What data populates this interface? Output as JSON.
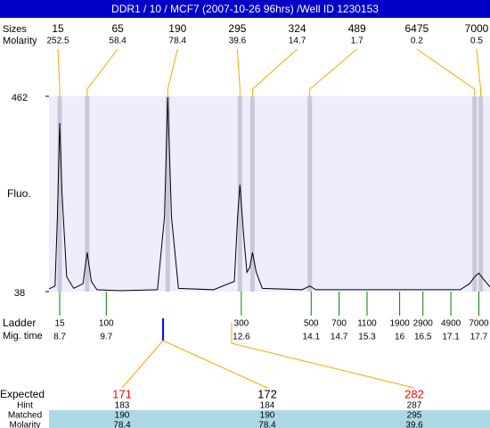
{
  "chart_data": {
    "type": "line",
    "title": "DDR1 / 10 / MCF7 (2007-10-26 96hrs) /Well ID 1230153",
    "ylabel": "Fluo.",
    "ylim": [
      38,
      462
    ],
    "yticks": [
      38,
      462
    ],
    "xlim": [
      8.47,
      17.94
    ],
    "trace": {
      "color": "#000000",
      "x": [
        8.47,
        8.6,
        8.65,
        8.7,
        8.75,
        8.85,
        9.0,
        9.2,
        9.29,
        9.38,
        9.5,
        10.0,
        10.8,
        10.95,
        11.02,
        11.1,
        11.25,
        12.0,
        12.45,
        12.52,
        12.57,
        12.65,
        12.72,
        12.78,
        12.84,
        12.92,
        13.05,
        13.9,
        14.07,
        14.2,
        17.3,
        17.5,
        17.61,
        17.7,
        17.8,
        17.94
      ],
      "values": [
        44,
        50,
        200,
        404,
        250,
        70,
        45,
        55,
        123,
        60,
        42,
        40,
        42,
        200,
        460,
        200,
        45,
        42,
        60,
        200,
        270,
        160,
        80,
        90,
        123,
        80,
        45,
        42,
        50,
        42,
        42,
        55,
        70,
        78,
        65,
        48
      ]
    },
    "size_label": "Sizes",
    "molarity_label": "Molarity",
    "peaks": {
      "sizes": [
        15,
        65,
        190,
        295,
        324,
        489,
        6475,
        7000
      ],
      "molarity": [
        252.5,
        58.4,
        78.4,
        39.6,
        14.7,
        1.7,
        0.2,
        0.5
      ],
      "times": [
        8.7,
        9.29,
        11.02,
        12.57,
        12.84,
        14.07,
        17.61,
        17.74
      ]
    },
    "ladder": {
      "label": "Ladder",
      "time_label": "Mig. time",
      "sizes": [
        15,
        100,
        300,
        500,
        700,
        1100,
        1900,
        2900,
        4900,
        7000
      ],
      "times": [
        8.7,
        9.7,
        12.6,
        14.1,
        14.7,
        15.3,
        16,
        16.5,
        17.1,
        17.7
      ]
    },
    "marker_time": 10.92,
    "table": {
      "row_labels": [
        "Expected",
        "Hint",
        "Matched",
        "Molarity"
      ],
      "expected": [
        171,
        172,
        282
      ],
      "expected_colors": [
        "#ff0000",
        "#000000",
        "#ff0000"
      ],
      "hint": [
        183,
        184,
        287
      ],
      "matched": [
        190,
        190,
        295
      ],
      "molarity": [
        78.4,
        78.4,
        39.6
      ]
    }
  }
}
